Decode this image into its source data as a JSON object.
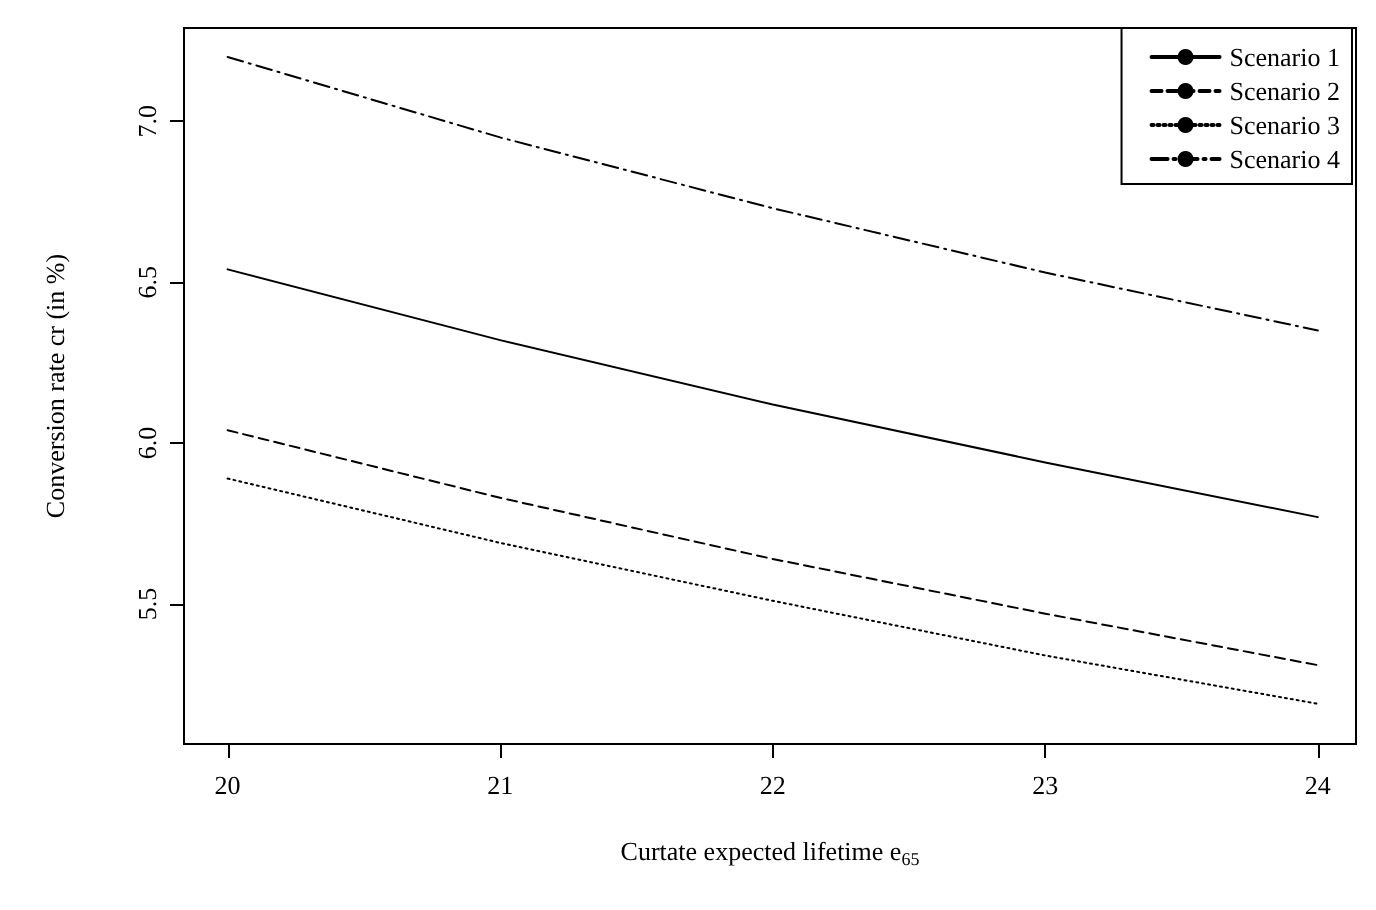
{
  "chart_data": {
    "type": "line",
    "xlabel": "Curtate expected lifetime e$_{65}$",
    "ylabel": "Conversion rate cr (in %)",
    "x": [
      20,
      21,
      22,
      23,
      24
    ],
    "xlim": [
      19.84,
      24.14
    ],
    "xticks": [
      20,
      21,
      22,
      23,
      24
    ],
    "ylim": [
      5.065,
      7.29
    ],
    "yticks": [
      5.5,
      {
        "value": 6,
        "label": "6.0"
      },
      6.5,
      {
        "value": 7,
        "label": "7.0"
      }
    ],
    "grid": false,
    "legend": "top right",
    "marker": "none",
    "series": [
      {
        "name": "Scenario 1",
        "color": "#000000",
        "line_style": "solid",
        "values": [
          6.54,
          6.32,
          6.12,
          5.94,
          5.77
        ]
      },
      {
        "name": "Scenario 2",
        "color": "#000000",
        "line_style": "dashed",
        "values": [
          6.04,
          5.83,
          5.64,
          5.47,
          5.31
        ]
      },
      {
        "name": "Scenario 3",
        "color": "#000000",
        "line_style": "dotted",
        "values": [
          5.89,
          5.69,
          5.51,
          5.34,
          5.19
        ]
      },
      {
        "name": "Scenario 4",
        "color": "#000000",
        "line_style": "dashdot",
        "values": [
          7.2,
          6.95,
          6.73,
          6.53,
          6.35
        ]
      }
    ]
  }
}
